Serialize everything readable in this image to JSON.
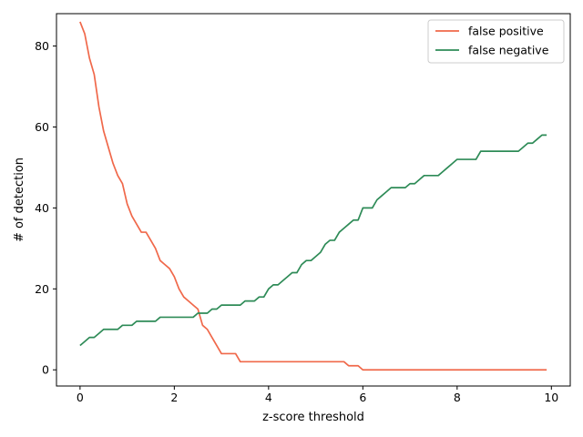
{
  "chart_data": {
    "type": "line",
    "xlabel": "z-score threshold",
    "ylabel": "# of detection",
    "xlim": [
      -0.5,
      10.4
    ],
    "ylim": [
      -4,
      88
    ],
    "xticks": [
      0,
      2,
      4,
      6,
      8,
      10
    ],
    "yticks": [
      0,
      20,
      40,
      60,
      80
    ],
    "grid": false,
    "legend_position": "upper right",
    "x": [
      0.0,
      0.1,
      0.2,
      0.3,
      0.4,
      0.5,
      0.6,
      0.7,
      0.8,
      0.9,
      1.0,
      1.1,
      1.2,
      1.3,
      1.4,
      1.5,
      1.6,
      1.7,
      1.8,
      1.9,
      2.0,
      2.1,
      2.2,
      2.3,
      2.4,
      2.5,
      2.6,
      2.7,
      2.8,
      2.9,
      3.0,
      3.1,
      3.2,
      3.3,
      3.4,
      3.5,
      3.6,
      3.7,
      3.8,
      3.9,
      4.0,
      4.1,
      4.2,
      4.3,
      4.4,
      4.5,
      4.6,
      4.7,
      4.8,
      4.9,
      5.0,
      5.1,
      5.2,
      5.3,
      5.4,
      5.5,
      5.6,
      5.7,
      5.8,
      5.9,
      6.0,
      6.1,
      6.2,
      6.3,
      6.4,
      6.5,
      6.6,
      6.7,
      6.8,
      6.9,
      7.0,
      7.1,
      7.2,
      7.3,
      7.4,
      7.5,
      7.6,
      7.7,
      7.8,
      7.9,
      8.0,
      8.1,
      8.2,
      8.3,
      8.4,
      8.5,
      8.6,
      8.7,
      8.8,
      8.9,
      9.0,
      9.1,
      9.2,
      9.3,
      9.4,
      9.5,
      9.6,
      9.7,
      9.8,
      9.9
    ],
    "series": [
      {
        "name": "false positive",
        "color": "#f0684a",
        "values": [
          86,
          83,
          77,
          73,
          65,
          59,
          55,
          51,
          48,
          46,
          41,
          38,
          36,
          34,
          34,
          32,
          30,
          27,
          26,
          25,
          23,
          20,
          18,
          17,
          16,
          15,
          11,
          10,
          8,
          6,
          4,
          4,
          4,
          4,
          2,
          2,
          2,
          2,
          2,
          2,
          2,
          2,
          2,
          2,
          2,
          2,
          2,
          2,
          2,
          2,
          2,
          2,
          2,
          2,
          2,
          2,
          2,
          1,
          1,
          1,
          0,
          0,
          0,
          0,
          0,
          0,
          0,
          0,
          0,
          0,
          0,
          0,
          0,
          0,
          0,
          0,
          0,
          0,
          0,
          0,
          0,
          0,
          0,
          0,
          0,
          0,
          0,
          0,
          0,
          0,
          0,
          0,
          0,
          0,
          0,
          0,
          0,
          0,
          0,
          0
        ]
      },
      {
        "name": "false negative",
        "color": "#2e8b57",
        "values": [
          6,
          7,
          8,
          8,
          9,
          10,
          10,
          10,
          10,
          11,
          11,
          11,
          12,
          12,
          12,
          12,
          12,
          13,
          13,
          13,
          13,
          13,
          13,
          13,
          13,
          14,
          14,
          14,
          15,
          15,
          16,
          16,
          16,
          16,
          16,
          17,
          17,
          17,
          18,
          18,
          20,
          21,
          21,
          22,
          23,
          24,
          24,
          26,
          27,
          27,
          28,
          29,
          31,
          32,
          32,
          34,
          35,
          36,
          37,
          37,
          40,
          40,
          40,
          42,
          43,
          44,
          45,
          45,
          45,
          45,
          46,
          46,
          47,
          48,
          48,
          48,
          48,
          49,
          50,
          51,
          52,
          52,
          52,
          52,
          52,
          54,
          54,
          54,
          54,
          54,
          54,
          54,
          54,
          54,
          55,
          56,
          56,
          57,
          58,
          58
        ]
      }
    ]
  }
}
